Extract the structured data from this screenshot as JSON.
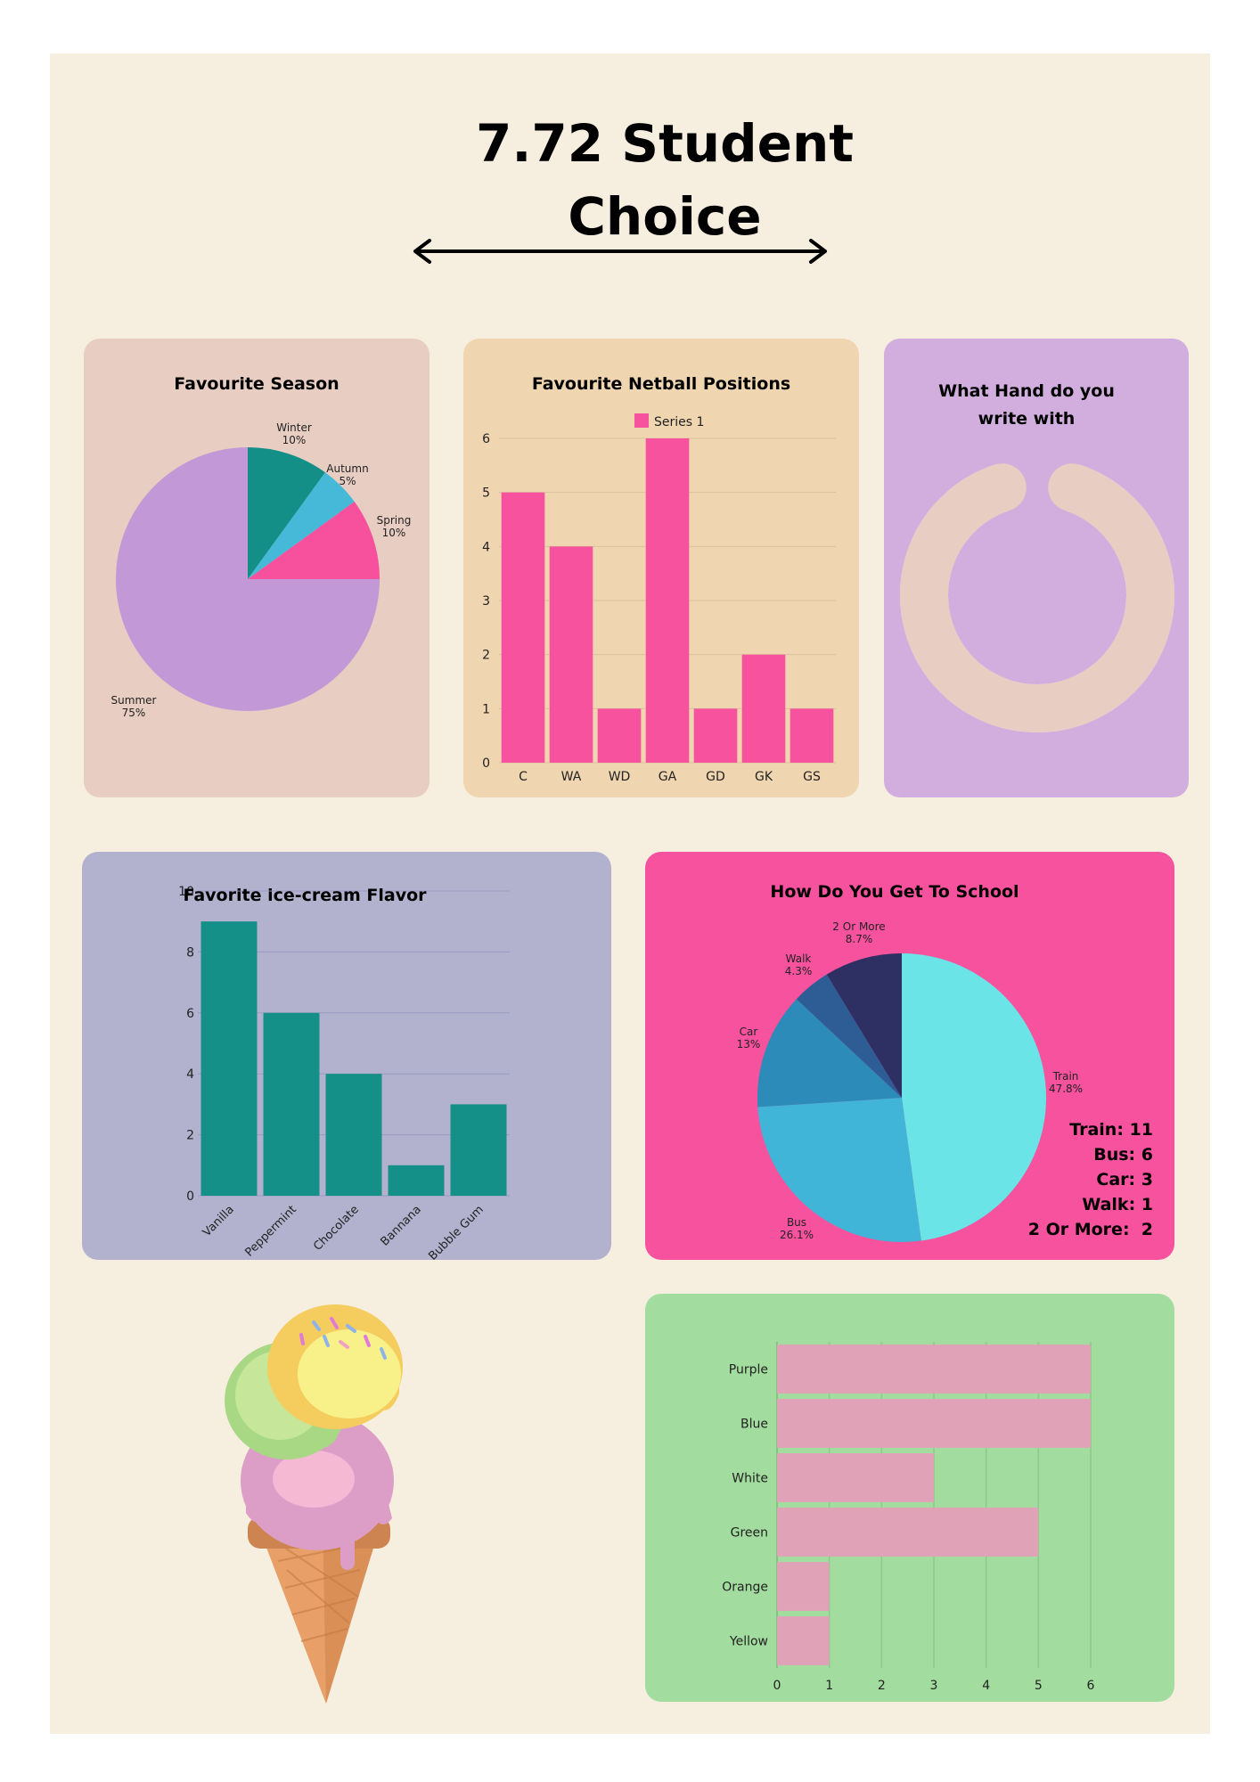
{
  "title": "7.72 Student Choice",
  "colors": {
    "background": "#f6efe0",
    "season_card": "#e8cdc3",
    "netball_card": "#efd5b0",
    "hand_card": "#d2aede",
    "icecream_card": "#b2b2cf",
    "school_card": "#f6529e",
    "colour_card": "#a2dc9e",
    "pink_bar": "#f7529d",
    "teal_bar": "#149088",
    "colour_bar": "#e0a2b7"
  },
  "chart_data": [
    {
      "id": "season",
      "type": "pie",
      "title": "Favourite Season",
      "slices": [
        {
          "label": "Winter",
          "value": 10,
          "pct_label": "10%",
          "color": "#148f87"
        },
        {
          "label": "Autumn",
          "value": 5,
          "pct_label": "5%",
          "color": "#46b9d8"
        },
        {
          "label": "Spring",
          "value": 10,
          "pct_label": "10%",
          "color": "#f7509d"
        },
        {
          "label": "Summer",
          "value": 75,
          "pct_label": "75%",
          "color": "#c299d6"
        }
      ]
    },
    {
      "id": "netball",
      "type": "bar",
      "title": "Favourite Netball Positions",
      "categories": [
        "C",
        "WA",
        "WD",
        "GA",
        "GD",
        "GK",
        "GS"
      ],
      "series": [
        {
          "name": "Series 1",
          "values": [
            5,
            4,
            1,
            6,
            1,
            2,
            1
          ]
        }
      ],
      "ylim": [
        0,
        6
      ],
      "yticks": [
        0,
        1,
        2,
        3,
        4,
        5,
        6
      ],
      "legend": "top"
    },
    {
      "id": "hand",
      "type": "pie",
      "title": "What Hand do you write with",
      "slices": [
        {
          "label": "",
          "value": 90,
          "color": "#e8cdc3"
        },
        {
          "label": "",
          "value": 10,
          "color": "#f6efe0"
        }
      ]
    },
    {
      "id": "icecream",
      "type": "bar",
      "title": "Favorite ice-cream Flavor",
      "categories": [
        "Vanilla",
        "Peppermint",
        "Chocolate",
        "Bannana",
        "Bubble Gum"
      ],
      "values": [
        9,
        6,
        4,
        1,
        3
      ],
      "ylim": [
        0,
        10
      ],
      "yticks": [
        0,
        2,
        4,
        6,
        8,
        10
      ]
    },
    {
      "id": "school",
      "type": "pie",
      "title": "How Do You Get To School",
      "slices": [
        {
          "label": "Train",
          "value": 47.8,
          "pct_label": "47.8%",
          "color": "#6ae4e7"
        },
        {
          "label": "Bus",
          "value": 26.1,
          "pct_label": "26.1%",
          "color": "#41b5d7"
        },
        {
          "label": "Car",
          "value": 13,
          "pct_label": "13%",
          "color": "#2c8bb8"
        },
        {
          "label": "Walk",
          "value": 4.3,
          "pct_label": "4.3%",
          "color": "#2d5d94"
        },
        {
          "label": "2 Or More",
          "value": 8.7,
          "pct_label": "8.7%",
          "color": "#2e2f63"
        }
      ],
      "counts": [
        "Train: 11",
        "Bus: 6",
        "Car: 3",
        "Walk: 1",
        "2 Or More:  2"
      ]
    },
    {
      "id": "colour",
      "type": "bar",
      "orientation": "horizontal",
      "title": "",
      "categories": [
        "Purple",
        "Blue",
        "White",
        "Green",
        "Orange",
        "Yellow"
      ],
      "values": [
        6,
        6,
        3,
        5,
        1,
        1
      ],
      "xlim": [
        0,
        6
      ],
      "xticks": [
        0,
        1,
        2,
        3,
        4,
        5,
        6
      ]
    }
  ]
}
